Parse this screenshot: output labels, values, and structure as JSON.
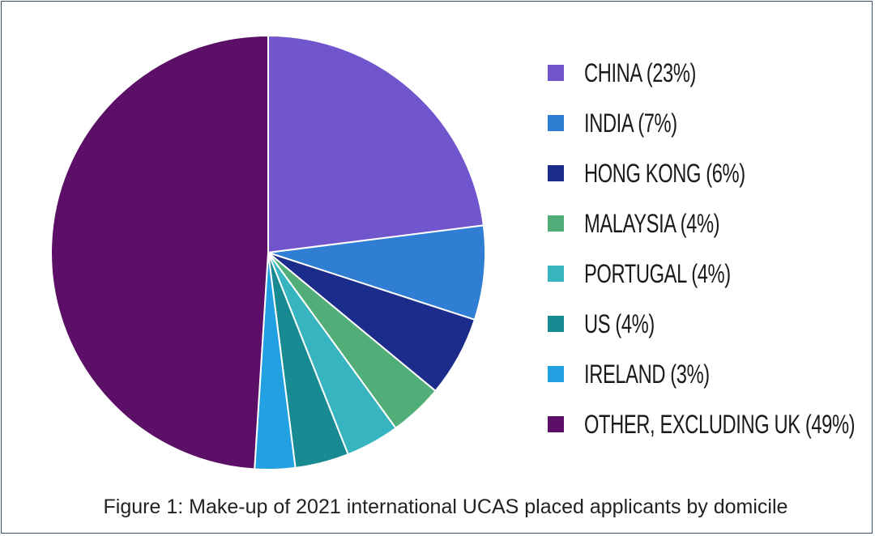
{
  "chart_data": {
    "type": "pie",
    "title": "",
    "caption": "Figure 1: Make-up of 2021 international UCAS placed applicants by domicile",
    "unit": "%",
    "legend_position": "right",
    "slices": [
      {
        "label": "CHINA (23%)",
        "value": 23,
        "color": "#7055cc"
      },
      {
        "label": "INDIA (7%)",
        "value": 7,
        "color": "#2f7ed3"
      },
      {
        "label": "HONG KONG (6%)",
        "value": 6,
        "color": "#1c2c8a"
      },
      {
        "label": "MALAYSIA (4%)",
        "value": 4,
        "color": "#52ae79"
      },
      {
        "label": "PORTUGAL (4%)",
        "value": 4,
        "color": "#36b5c0"
      },
      {
        "label": "US (4%)",
        "value": 4,
        "color": "#178a92"
      },
      {
        "label": "IRELAND (3%)",
        "value": 3,
        "color": "#21a1e2"
      },
      {
        "label": "OTHER, EXCLUDING UK (49%)",
        "value": 49,
        "color": "#5c0f66"
      }
    ]
  }
}
